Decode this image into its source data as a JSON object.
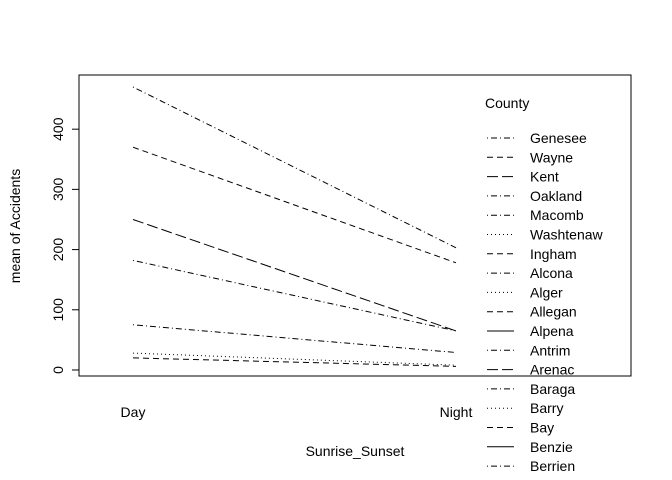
{
  "chart_data": {
    "type": "line",
    "xlabel": "Sunrise_Sunset",
    "ylabel": "mean of  Accidents",
    "categories": [
      "Day",
      "Night"
    ],
    "ylim": [
      -10,
      490
    ],
    "y_ticks": [
      0,
      100,
      200,
      300,
      400
    ],
    "legend_title": "County",
    "legend_placement": "right",
    "grid": false,
    "series": [
      {
        "name": "Genesee",
        "dash": "dotdash",
        "values": [
          470,
          203
        ]
      },
      {
        "name": "Wayne",
        "dash": "dashed",
        "values": [
          370,
          178
        ]
      },
      {
        "name": "Kent",
        "dash": "longdash",
        "values": [
          250,
          65
        ]
      },
      {
        "name": "Oakland",
        "dash": "dotdash",
        "values": [
          182,
          65
        ]
      },
      {
        "name": "Macomb",
        "dash": "dotdash",
        "values": [
          75,
          29
        ]
      },
      {
        "name": "Washtenaw",
        "dash": "dotted",
        "values": [
          28,
          8
        ]
      },
      {
        "name": "Ingham",
        "dash": "dashed",
        "values": [
          20,
          6
        ]
      },
      {
        "name": "Alcona",
        "dash": "dotdash",
        "values": [
          null,
          null
        ]
      },
      {
        "name": "Alger",
        "dash": "dotted",
        "values": [
          null,
          null
        ]
      },
      {
        "name": "Allegan",
        "dash": "dashed",
        "values": [
          null,
          null
        ]
      },
      {
        "name": "Alpena",
        "dash": "solid",
        "values": [
          null,
          null
        ]
      },
      {
        "name": "Antrim",
        "dash": "dotdash",
        "values": [
          null,
          null
        ]
      },
      {
        "name": "Arenac",
        "dash": "longdash",
        "values": [
          null,
          null
        ]
      },
      {
        "name": "Baraga",
        "dash": "dotdash",
        "values": [
          null,
          null
        ]
      },
      {
        "name": "Barry",
        "dash": "dotted",
        "values": [
          null,
          null
        ]
      },
      {
        "name": "Bay",
        "dash": "dashed",
        "values": [
          null,
          null
        ]
      },
      {
        "name": "Benzie",
        "dash": "solid",
        "values": [
          null,
          null
        ]
      },
      {
        "name": "Berrien",
        "dash": "dotdash",
        "values": [
          null,
          null
        ]
      }
    ]
  }
}
